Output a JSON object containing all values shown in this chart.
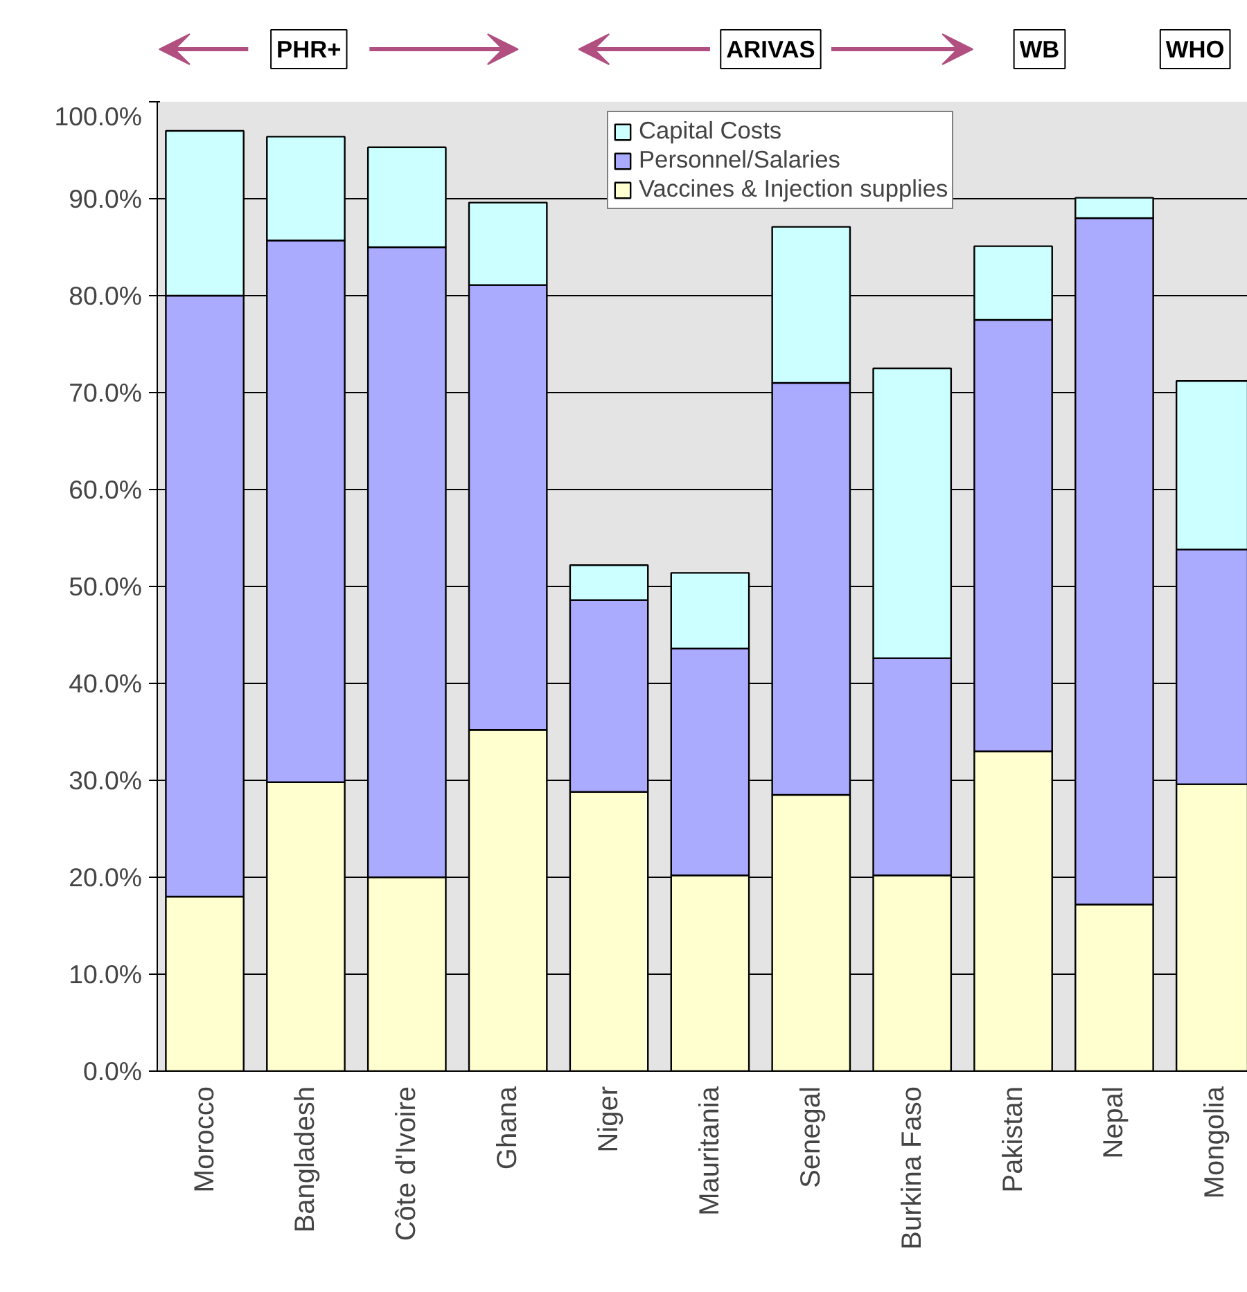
{
  "chart_data": {
    "type": "bar",
    "stacked": true,
    "categories": [
      "Morocco",
      "Bangladesh",
      "Côte d'Ivoire",
      "Ghana",
      "Niger",
      "Mauritania",
      "Senegal",
      "Burkina Faso",
      "Pakistan",
      "Nepal",
      "Mongolia"
    ],
    "series": [
      {
        "name": "Vaccines & Injection supplies",
        "color": "#ffffd0",
        "values": [
          18.0,
          29.8,
          20.0,
          35.2,
          28.8,
          20.2,
          28.5,
          20.2,
          33.0,
          17.2,
          29.6
        ]
      },
      {
        "name": "Personnel/Salaries",
        "color": "#aaaaff",
        "values": [
          62.0,
          55.9,
          65.0,
          45.9,
          19.8,
          23.4,
          42.5,
          22.4,
          44.5,
          70.8,
          24.2
        ]
      },
      {
        "name": "Capital Costs",
        "color": "#ccffff",
        "values": [
          17.0,
          10.7,
          10.3,
          8.5,
          3.6,
          7.8,
          16.1,
          29.9,
          7.6,
          2.1,
          17.4
        ]
      }
    ],
    "ylim": [
      0,
      100
    ],
    "yticks": [
      {
        "value": 0,
        "label": "0.0%"
      },
      {
        "value": 10,
        "label": "10.0%"
      },
      {
        "value": 20,
        "label": "20.0%"
      },
      {
        "value": 30,
        "label": "30.0%"
      },
      {
        "value": 40,
        "label": "40.0%"
      },
      {
        "value": 50,
        "label": "50.0%"
      },
      {
        "value": 60,
        "label": "60.0%"
      },
      {
        "value": 70,
        "label": "70.0%"
      },
      {
        "value": 80,
        "label": "80.0%"
      },
      {
        "value": 90,
        "label": "90.0%"
      },
      {
        "value": 100,
        "label": "100.0%"
      }
    ],
    "grid": "y",
    "legend": "top",
    "annotations": [
      "PHR+",
      "ARIVAS",
      "WB",
      "WHO"
    ]
  }
}
